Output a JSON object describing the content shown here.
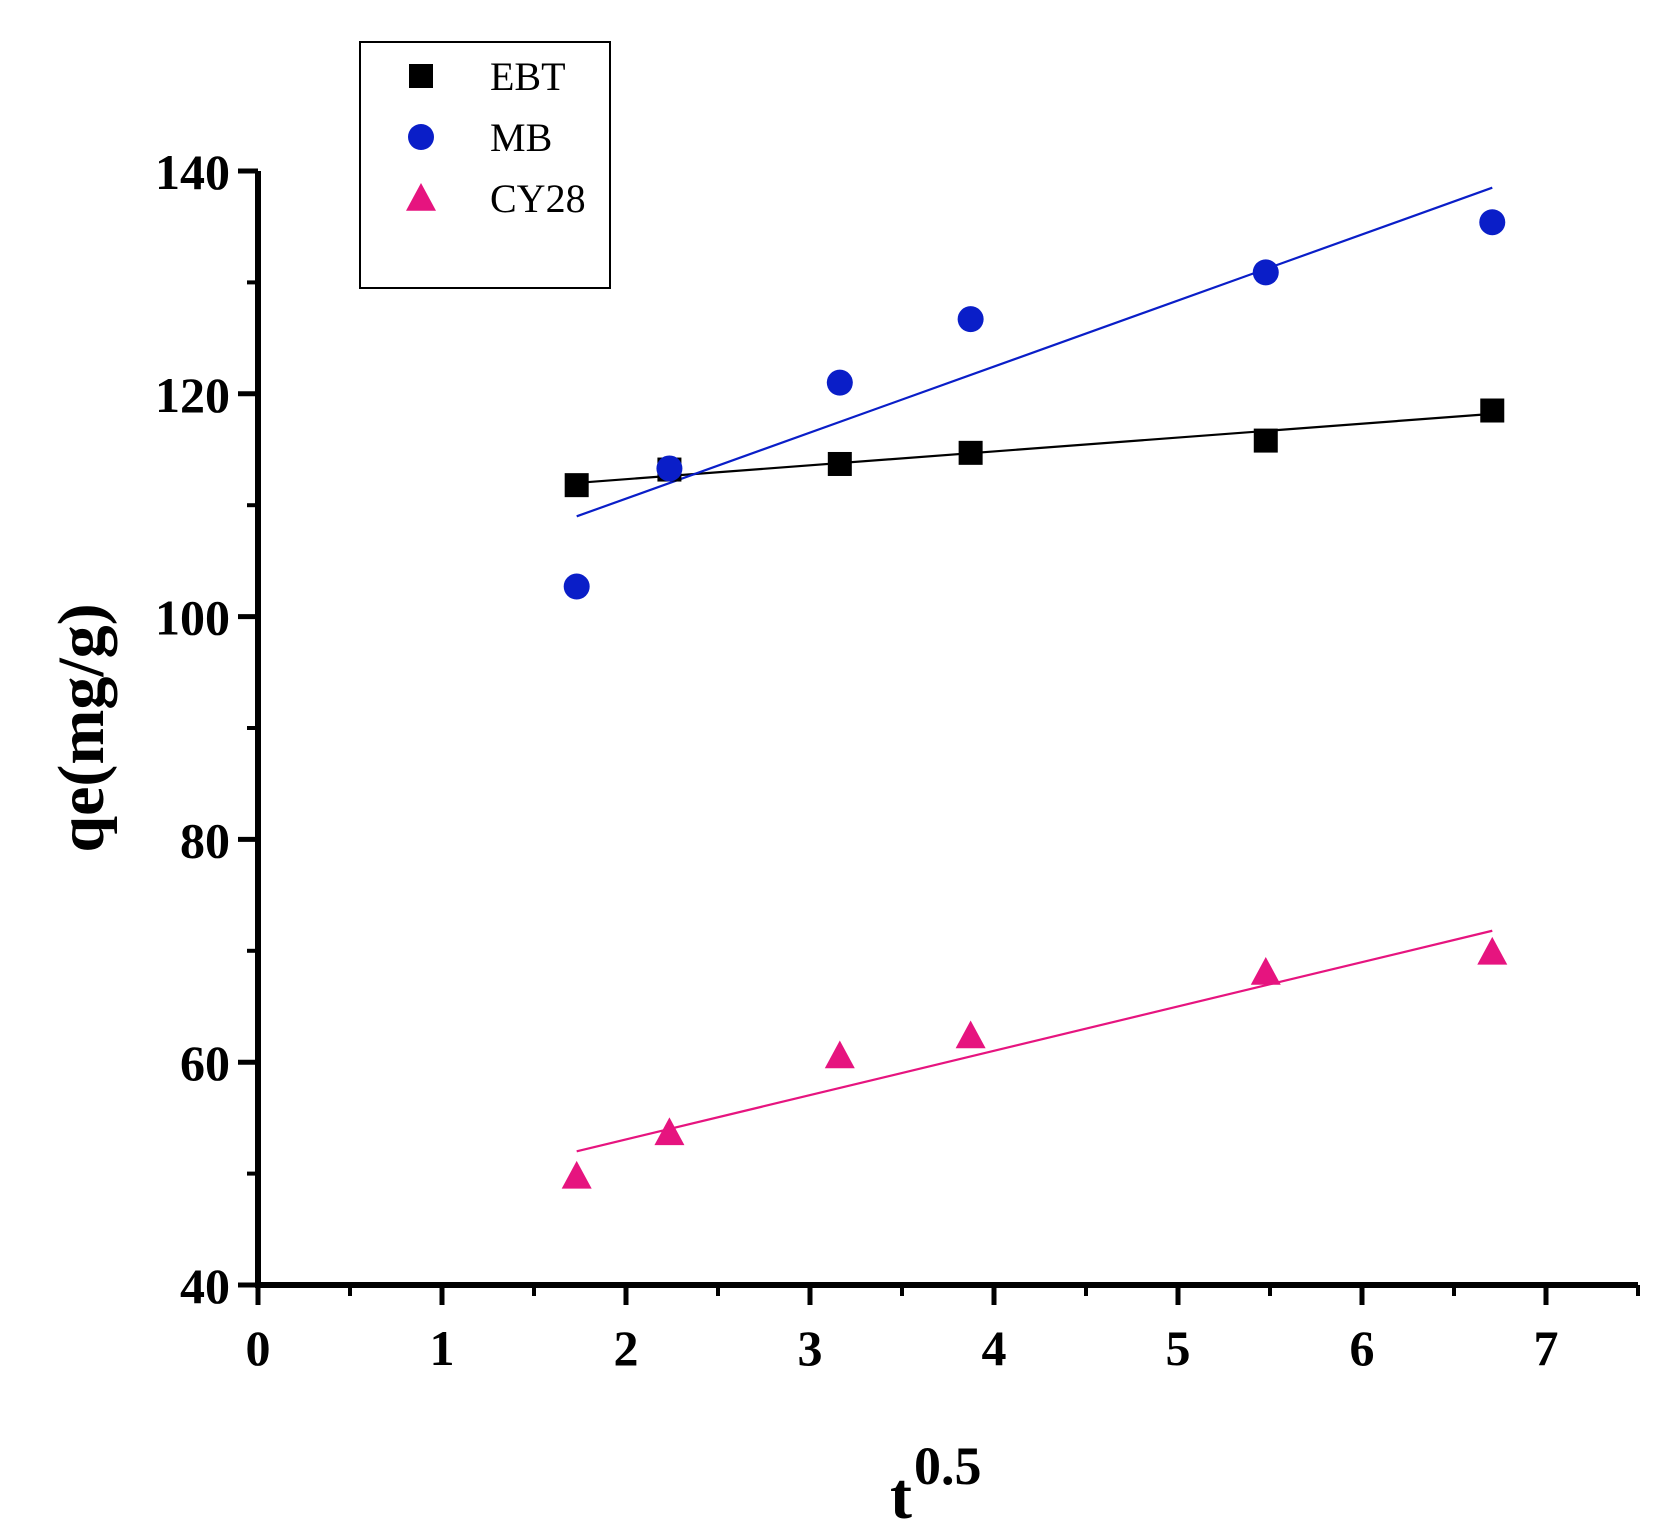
{
  "chart_data": {
    "type": "scatter",
    "xlabel": "t",
    "xlabel_superscript": "0.5",
    "ylabel": "qe(mg/g)",
    "xlim": [
      0,
      7.5
    ],
    "ylim": [
      40,
      140
    ],
    "xticks": [
      0,
      1,
      2,
      3,
      4,
      5,
      6,
      7
    ],
    "yticks": [
      40,
      60,
      80,
      100,
      120,
      140
    ],
    "grid": false,
    "legend_position": "top-left",
    "series": [
      {
        "name": "EBT",
        "marker": "square",
        "color": "#000000",
        "x": [
          1.732,
          2.236,
          3.162,
          3.873,
          5.477,
          6.708
        ],
        "y": [
          111.8,
          113.2,
          113.7,
          114.7,
          115.8,
          118.5
        ],
        "fit": {
          "x": [
            1.732,
            6.708
          ],
          "y": [
            112.0,
            118.2
          ]
        }
      },
      {
        "name": "MB",
        "marker": "circle",
        "color": "#0a1ec8",
        "x": [
          1.732,
          2.236,
          3.162,
          3.873,
          5.477,
          6.708
        ],
        "y": [
          102.7,
          113.3,
          121.0,
          126.7,
          130.9,
          135.4
        ],
        "fit": {
          "x": [
            1.732,
            6.708
          ],
          "y": [
            109.0,
            138.5
          ]
        }
      },
      {
        "name": "CY28",
        "marker": "triangle",
        "color": "#e6147f",
        "x": [
          1.732,
          2.236,
          3.162,
          3.873,
          5.477,
          6.708
        ],
        "y": [
          49.8,
          53.7,
          60.6,
          62.4,
          68.1,
          69.9
        ],
        "fit": {
          "x": [
            1.732,
            6.708
          ],
          "y": [
            52.0,
            71.8
          ]
        }
      }
    ]
  }
}
